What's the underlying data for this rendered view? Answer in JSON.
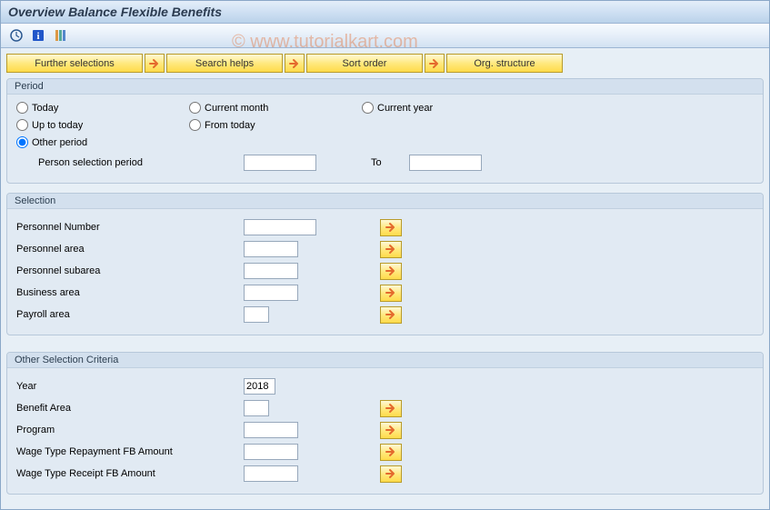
{
  "window_title": "Overview Balance Flexible Benefits",
  "watermark": "© www.tutorialkart.com",
  "colors": {
    "titlebar_start": "#e4eef9",
    "titlebar_end": "#bad2ea",
    "content_bg": "#e7eff6",
    "group_border": "#b7c8da",
    "group_bg": "#e1eaf3",
    "group_title_bg": "#d3e0ee",
    "btn_gold_start": "#fff9d6",
    "btn_gold_end": "#ffdb4a",
    "btn_gold_border": "#b89b2a",
    "input_border": "#97a8bb",
    "arrow_color": "#e46a2d"
  },
  "toolbar_icons": [
    "execute-icon",
    "info-icon",
    "variant-icon"
  ],
  "buttons": {
    "further_selections": "Further selections",
    "search_helps": "Search helps",
    "sort_order": "Sort order",
    "org_structure": "Org. structure"
  },
  "period": {
    "title": "Period",
    "options": {
      "today": "Today",
      "current_month": "Current month",
      "current_year": "Current year",
      "up_to_today": "Up to today",
      "from_today": "From today",
      "other_period": "Other period"
    },
    "selected": "other_period",
    "person_selection_label": "Person selection period",
    "from_value": "",
    "to_label": "To",
    "to_value": ""
  },
  "selection": {
    "title": "Selection",
    "fields": [
      {
        "label": "Personnel Number",
        "value": "",
        "input_width": "w80",
        "multi": true
      },
      {
        "label": "Personnel area",
        "value": "",
        "input_width": "w60",
        "multi": true
      },
      {
        "label": "Personnel subarea",
        "value": "",
        "input_width": "w60",
        "multi": true
      },
      {
        "label": "Business area",
        "value": "",
        "input_width": "w60",
        "multi": true
      },
      {
        "label": "Payroll area",
        "value": "",
        "input_width": "w28",
        "multi": true
      }
    ]
  },
  "other_criteria": {
    "title": "Other Selection Criteria",
    "fields": [
      {
        "label": "Year",
        "value": "2018",
        "input_width": "w35",
        "multi": false
      },
      {
        "label": "Benefit Area",
        "value": "",
        "input_width": "w28",
        "multi": true
      },
      {
        "label": "Program",
        "value": "",
        "input_width": "w60",
        "multi": true
      },
      {
        "label": "Wage Type Repayment FB Amount",
        "value": "",
        "input_width": "w60",
        "multi": true
      },
      {
        "label": "Wage Type Receipt FB Amount",
        "value": "",
        "input_width": "w60",
        "multi": true
      }
    ]
  }
}
